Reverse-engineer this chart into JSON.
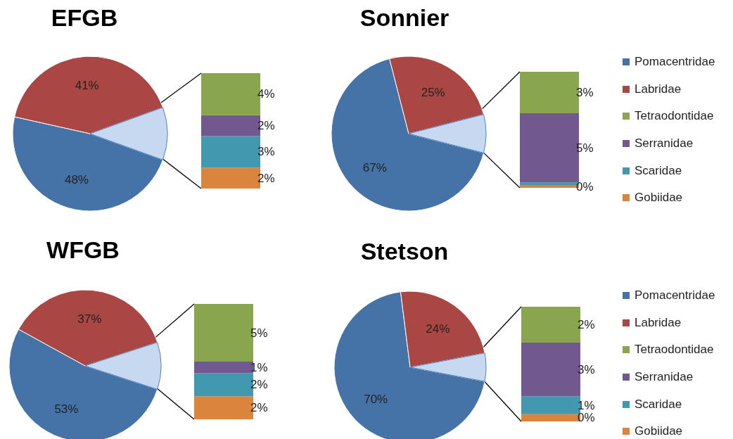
{
  "chart_data": [
    {
      "type": "pie",
      "title": "EFGB",
      "categories": [
        null,
        null,
        null
      ],
      "values": [
        48,
        41,
        11
      ],
      "colors": [
        "#4572a7",
        "#aa4643",
        "#c6d9f1"
      ],
      "value_labels": [
        "48%",
        "41%",
        null
      ]
    },
    {
      "type": "bar",
      "stacked": true,
      "categories": [
        null
      ],
      "series": [
        {
          "color": "#db843d",
          "values": [
            2
          ],
          "value_labels": [
            "2%"
          ]
        },
        {
          "color": "#4198af",
          "values": [
            3
          ],
          "value_labels": [
            "3%"
          ]
        },
        {
          "color": "#71588f",
          "values": [
            2
          ],
          "value_labels": [
            "2%"
          ]
        },
        {
          "color": "#89a54e",
          "values": [
            4
          ],
          "value_labels": [
            "4%"
          ]
        }
      ]
    },
    {
      "type": "pie",
      "title": "Sonnier",
      "legend": "right",
      "categories": [
        "Pomacentridae",
        "Labridae",
        null
      ],
      "values": [
        67,
        25,
        8
      ],
      "colors": [
        "#4572a7",
        "#aa4643",
        "#c6d9f1"
      ],
      "value_labels": [
        "67%",
        "25%",
        null
      ]
    },
    {
      "type": "bar",
      "stacked": true,
      "categories": [
        null
      ],
      "legend": "right",
      "series": [
        {
          "name": "Gobiidae",
          "color": "#db843d",
          "values": [
            0.2
          ],
          "value_labels": [
            "0%"
          ]
        },
        {
          "name": "Scaridae",
          "color": "#4198af",
          "values": [
            0.2
          ],
          "value_labels": [
            null
          ]
        },
        {
          "name": "Serranidae",
          "color": "#71588f",
          "values": [
            5
          ],
          "value_labels": [
            "5%"
          ]
        },
        {
          "name": "Tetraodontidae",
          "color": "#89a54e",
          "values": [
            3
          ],
          "value_labels": [
            "3%"
          ]
        }
      ]
    },
    {
      "type": "pie",
      "title": "WFGB",
      "categories": [
        null,
        null,
        null
      ],
      "values": [
        53,
        37,
        10
      ],
      "colors": [
        "#4572a7",
        "#aa4643",
        "#c6d9f1"
      ],
      "value_labels": [
        "53%",
        "37%",
        null
      ]
    },
    {
      "type": "bar",
      "stacked": true,
      "categories": [
        null
      ],
      "series": [
        {
          "color": "#db843d",
          "values": [
            2
          ],
          "value_labels": [
            "2%"
          ]
        },
        {
          "color": "#4198af",
          "values": [
            2
          ],
          "value_labels": [
            "2%"
          ]
        },
        {
          "color": "#71588f",
          "values": [
            1
          ],
          "value_labels": [
            "1%"
          ]
        },
        {
          "color": "#89a54e",
          "values": [
            5
          ],
          "value_labels": [
            "5%"
          ]
        }
      ]
    },
    {
      "type": "pie",
      "title": "Stetson",
      "legend": "right",
      "categories": [
        "Pomacentridae",
        "Labridae",
        null
      ],
      "values": [
        70,
        24,
        6
      ],
      "colors": [
        "#4572a7",
        "#aa4643",
        "#c6d9f1"
      ],
      "value_labels": [
        "70%",
        "24%",
        null
      ]
    },
    {
      "type": "bar",
      "stacked": true,
      "categories": [
        null
      ],
      "legend": "right",
      "series": [
        {
          "name": "Gobiidae",
          "color": "#db843d",
          "values": [
            0.4
          ],
          "value_labels": [
            "0%"
          ]
        },
        {
          "name": "Scaridae",
          "color": "#4198af",
          "values": [
            1
          ],
          "value_labels": [
            "1%"
          ]
        },
        {
          "name": "Serranidae",
          "color": "#71588f",
          "values": [
            3
          ],
          "value_labels": [
            "3%"
          ]
        },
        {
          "name": "Tetraodontidae",
          "color": "#89a54e",
          "values": [
            2
          ],
          "value_labels": [
            "2%"
          ]
        }
      ]
    }
  ]
}
